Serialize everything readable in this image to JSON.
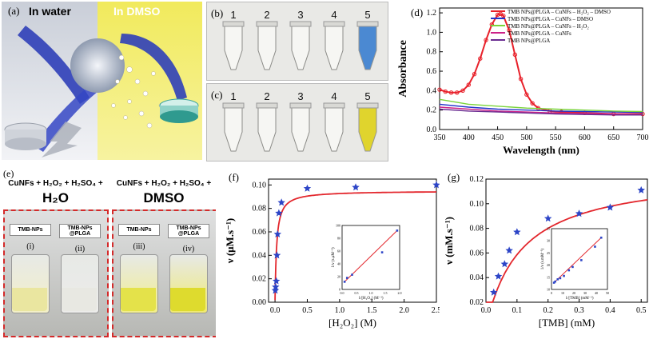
{
  "panel_a": {
    "label": "(a)",
    "left_title": "In water",
    "right_title": "In DMSO",
    "colors": {
      "water_bg": "#dfe3ea",
      "dmso_bg": "#f4ee77",
      "ribbon": "#2f3fb8"
    }
  },
  "panel_b": {
    "label": "(b)",
    "tubes": [
      "1",
      "2",
      "3",
      "4",
      "5"
    ],
    "tube5_color": "#3a7fd0"
  },
  "panel_c": {
    "label": "(c)",
    "tubes": [
      "1",
      "2",
      "3",
      "4",
      "5"
    ],
    "tube5_color": "#e0d21a"
  },
  "panel_e": {
    "label": "(e)",
    "left_header": "CuNFs + H₂O₂ + H₂SO₄ +",
    "left_solvent": "H₂O",
    "right_header": "CuNFs + H₂O₂ + H₂SO₄ +",
    "right_solvent": "DMSO",
    "vials": [
      {
        "tag": "TMB-NPs",
        "tag2": "",
        "roman": "(i)"
      },
      {
        "tag": "TMB-NPs",
        "tag2": "@PLGA",
        "roman": "(ii)"
      },
      {
        "tag": "TMB-NPs",
        "tag2": "",
        "roman": "(iii)"
      },
      {
        "tag": "TMB-NPs",
        "tag2": "@PLGA",
        "roman": "(iv)"
      }
    ]
  },
  "chart_data": [
    {
      "id": "d",
      "type": "line",
      "label": "(d)",
      "xlabel": "Wavelength (nm)",
      "ylabel": "Absorbance",
      "xlim": [
        350,
        700
      ],
      "ylim": [
        0,
        1.25
      ],
      "xticks": [
        350,
        400,
        450,
        500,
        550,
        600,
        650,
        700
      ],
      "yticks": [
        0.0,
        0.2,
        0.4,
        0.6,
        0.8,
        1.0,
        1.2
      ],
      "series": [
        {
          "name": "TMB NPs@PLGA – CuNFs – H₂O₂ – DMSO",
          "color": "#e8202a",
          "x": [
            350,
            360,
            370,
            380,
            390,
            400,
            410,
            420,
            430,
            440,
            450,
            455,
            460,
            470,
            480,
            490,
            500,
            510,
            520,
            540,
            560,
            600,
            650,
            700
          ],
          "y": [
            0.41,
            0.39,
            0.38,
            0.38,
            0.4,
            0.46,
            0.57,
            0.73,
            0.92,
            1.08,
            1.18,
            1.19,
            1.17,
            1.02,
            0.77,
            0.52,
            0.36,
            0.27,
            0.22,
            0.19,
            0.18,
            0.17,
            0.16,
            0.16
          ]
        },
        {
          "name": "TMB NPs@PLGA – CuNFs – DMSO",
          "color": "#2233cc",
          "x": [
            350,
            400,
            450,
            500,
            550,
            600,
            650,
            700
          ],
          "y": [
            0.26,
            0.23,
            0.21,
            0.2,
            0.19,
            0.185,
            0.18,
            0.175
          ]
        },
        {
          "name": "TMB NPs@PLGA – CuNFs – H₂O₂",
          "color": "#7ad43a",
          "x": [
            350,
            400,
            450,
            500,
            550,
            600,
            650,
            700
          ],
          "y": [
            0.31,
            0.26,
            0.24,
            0.22,
            0.21,
            0.2,
            0.19,
            0.185
          ]
        },
        {
          "name": "TMB NPs@PLGA – CuNFs",
          "color": "#cc2288",
          "x": [
            350,
            400,
            450,
            500,
            550,
            600,
            650,
            700
          ],
          "y": [
            0.23,
            0.21,
            0.19,
            0.18,
            0.17,
            0.165,
            0.16,
            0.155
          ]
        },
        {
          "name": "TMB NPs@PLGA",
          "color": "#6a2c91",
          "x": [
            350,
            400,
            450,
            500,
            550,
            600,
            650,
            700
          ],
          "y": [
            0.21,
            0.19,
            0.18,
            0.17,
            0.16,
            0.155,
            0.15,
            0.15
          ]
        }
      ]
    },
    {
      "id": "f",
      "type": "scatter",
      "label": "(f)",
      "xlabel": "[H₂O₂] (M)",
      "ylabel": "ν (μM.s⁻¹)",
      "xlim": [
        -0.1,
        2.5
      ],
      "ylim": [
        0,
        0.105
      ],
      "xticks": [
        0.0,
        0.5,
        1.0,
        1.5,
        2.0,
        2.5
      ],
      "yticks": [
        0.0,
        0.02,
        0.04,
        0.06,
        0.08,
        0.1
      ],
      "points_x": [
        0.005,
        0.01,
        0.02,
        0.03,
        0.04,
        0.06,
        0.1,
        0.5,
        1.25,
        2.5
      ],
      "points_y": [
        0.01,
        0.013,
        0.018,
        0.04,
        0.058,
        0.076,
        0.085,
        0.097,
        0.098,
        0.1
      ],
      "fit_vmax": 0.095,
      "fit_km": 0.025,
      "inset": {
        "xlabel": "1/[H₂O₂] (M⁻¹)",
        "ylabel": "1/ν (s.μM⁻¹)",
        "xticks": [
          "0.0",
          "0.5",
          "1.0",
          "1.5",
          "2.0"
        ],
        "yticks": [
          "0",
          "20",
          "40",
          "60",
          "80",
          "100"
        ],
        "xlim": [
          0,
          2.3
        ],
        "ylim": [
          0,
          100
        ],
        "x": [
          0.1,
          0.2,
          0.4,
          1.6,
          2.2
        ],
        "y": [
          12,
          18,
          23,
          58,
          92
        ]
      }
    },
    {
      "id": "g",
      "type": "scatter",
      "label": "(g)",
      "xlabel": "[TMB] (mM)",
      "ylabel": "ν (mM.s⁻¹)",
      "xlim": [
        0,
        0.52
      ],
      "ylim": [
        0.02,
        0.12
      ],
      "xticks": [
        0.0,
        0.1,
        0.2,
        0.3,
        0.4,
        0.5
      ],
      "yticks": [
        0.02,
        0.04,
        0.06,
        0.08,
        0.1,
        0.12
      ],
      "points_x": [
        0.025,
        0.04,
        0.06,
        0.075,
        0.1,
        0.2,
        0.3,
        0.4,
        0.5
      ],
      "points_y": [
        0.028,
        0.041,
        0.051,
        0.062,
        0.077,
        0.088,
        0.092,
        0.097,
        0.111
      ],
      "fit_vmax": 0.126,
      "fit_km": 0.115,
      "inset": {
        "xlabel": "1/[TMB] (mM⁻¹)",
        "ylabel": "1/ν (s.mM⁻¹)",
        "xticks": [
          "0",
          "10",
          "20",
          "30",
          "40",
          "50"
        ],
        "yticks": [
          "10",
          "15",
          "20",
          "25",
          "30",
          "35"
        ],
        "xlim": [
          0,
          45
        ],
        "ylim": [
          8,
          35
        ],
        "x": [
          2,
          3,
          5,
          7,
          10,
          14,
          17,
          24,
          35,
          40
        ],
        "y": [
          11,
          11.5,
          12.5,
          13,
          14,
          16.5,
          18,
          21,
          27,
          31
        ]
      }
    }
  ]
}
